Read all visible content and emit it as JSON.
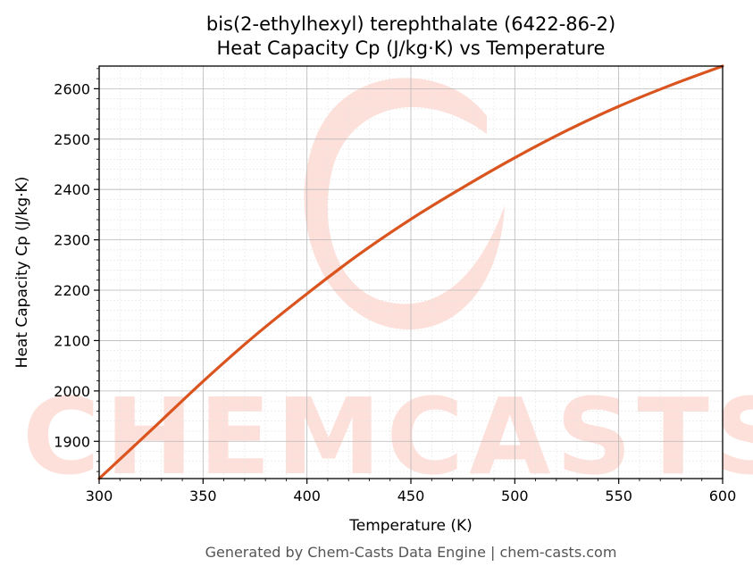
{
  "watermark": {
    "text": "CHEMCASTS",
    "color": "#fde0da"
  },
  "footer": "Generated by Chem-Casts Data Engine | chem-casts.com",
  "chart_data": {
    "type": "line",
    "title": "bis(2-ethylhexyl) terephthalate (6422-86-2)",
    "subtitle": "Heat Capacity Cp (J/kg·K) vs Temperature",
    "xlabel": "Temperature (K)",
    "ylabel": "Heat Capacity Cp (J/kg·K)",
    "xlim": [
      300,
      600
    ],
    "ylim": [
      1826,
      2645
    ],
    "xticks": [
      "300",
      "350",
      "400",
      "450",
      "500",
      "550",
      "600"
    ],
    "yticks": [
      "1900",
      "2000",
      "2100",
      "2200",
      "2300",
      "2400",
      "2500",
      "2600"
    ],
    "grid": true,
    "series": [
      {
        "color": "#d9541e",
        "x": [
          300,
          325,
          350,
          375,
          400,
          425,
          450,
          475,
          500,
          525,
          550,
          575,
          600
        ],
        "y": [
          1826,
          1922,
          2019,
          2110,
          2193,
          2271,
          2341,
          2404,
          2463,
          2517,
          2565,
          2607,
          2645
        ]
      }
    ]
  }
}
